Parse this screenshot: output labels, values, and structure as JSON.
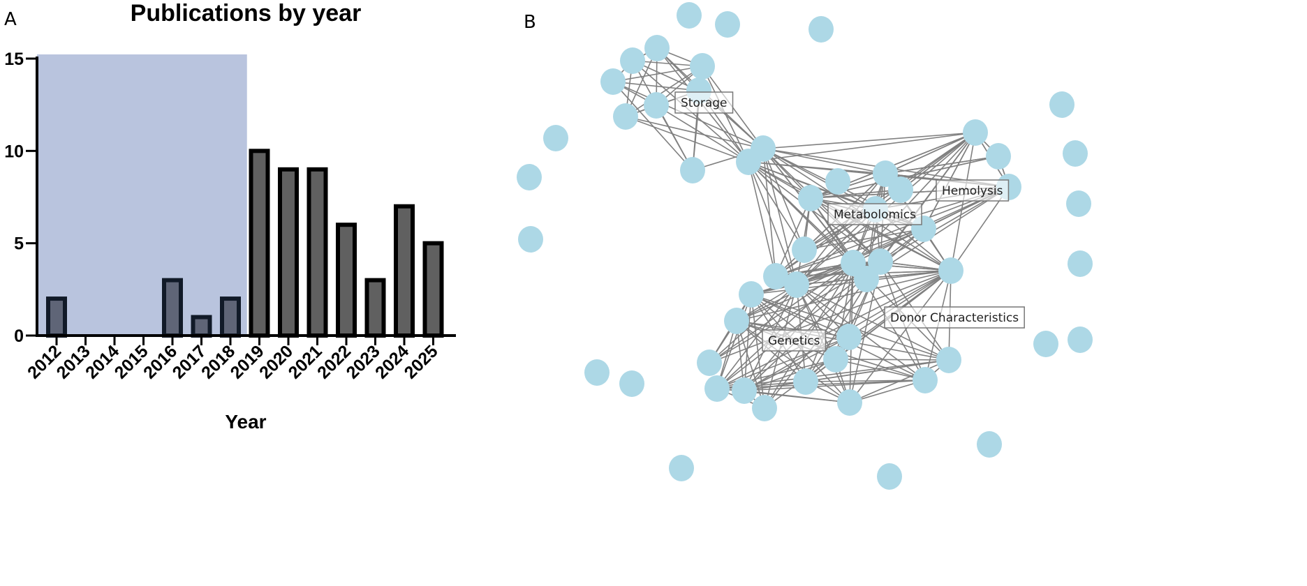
{
  "chart_data": [
    {
      "type": "bar",
      "panel_label": "A",
      "title": "Publications by year",
      "xlabel": "Year",
      "ylabel": "",
      "ylim": [
        0,
        15
      ],
      "yticks": [
        "0",
        "5",
        "10",
        "15"
      ],
      "categories": [
        "2012",
        "2013",
        "2014",
        "2015",
        "2016",
        "2017",
        "2018",
        "2019",
        "2020",
        "2021",
        "2022",
        "2023",
        "2024",
        "2025"
      ],
      "values": [
        2,
        0,
        0,
        0,
        3,
        1,
        2,
        10,
        9,
        9,
        6,
        3,
        7,
        5
      ],
      "shaded_range": [
        "2012",
        "2018"
      ],
      "colors": {
        "bar": "#606060",
        "shaded": "#b9c4de",
        "edge": "#000000"
      }
    },
    {
      "type": "network",
      "panel_label": "B",
      "cluster_labels": [
        "Storage",
        "Hemolysis",
        "Metabolomics",
        "Donor Characteristics",
        "Genetics"
      ],
      "colors": {
        "node": "#add8e6",
        "edge": "#808080"
      }
    }
  ]
}
